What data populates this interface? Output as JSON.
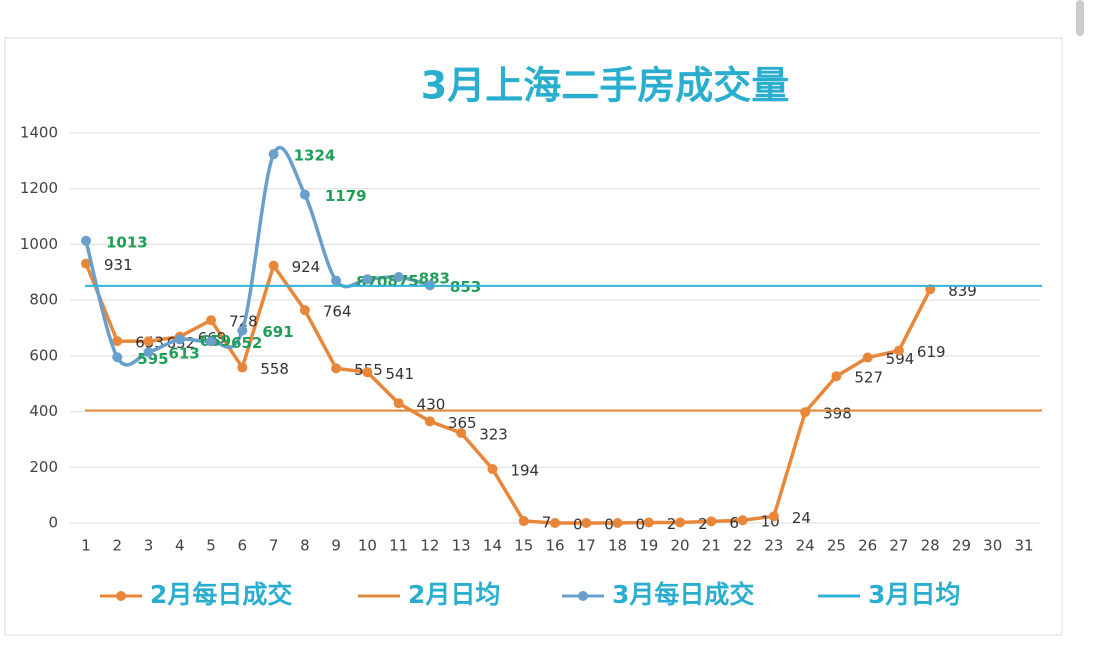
{
  "chart_data": {
    "type": "line",
    "title": "3月上海二手房成交量",
    "categories": [
      "1",
      "2",
      "3",
      "4",
      "5",
      "6",
      "7",
      "8",
      "9",
      "10",
      "11",
      "12",
      "13",
      "14",
      "15",
      "16",
      "17",
      "18",
      "19",
      "20",
      "21",
      "22",
      "23",
      "24",
      "25",
      "26",
      "27",
      "28",
      "29",
      "30",
      "31"
    ],
    "ylim": [
      0,
      1400
    ],
    "yticks": [
      0,
      200,
      400,
      600,
      800,
      1000,
      1200,
      1400
    ],
    "grid": true,
    "series": [
      {
        "name": "2月每日成交",
        "color": "#e8873a",
        "values": [
          931,
          653,
          652,
          669,
          728,
          558,
          924,
          764,
          555,
          541,
          430,
          365,
          323,
          194,
          7,
          0,
          0,
          0,
          2,
          2,
          6,
          10,
          24,
          398,
          527,
          594,
          619,
          839,
          null,
          null,
          null
        ]
      },
      {
        "name": "2月日均",
        "color": "#e08a3c",
        "value": 404
      },
      {
        "name": "3月每日成交",
        "color": "#6a9fcc",
        "smooth": true,
        "values": [
          1013,
          595,
          613,
          659,
          652,
          691,
          1324,
          1179,
          870,
          875,
          883,
          853,
          null,
          null,
          null,
          null,
          null,
          null,
          null,
          null,
          null,
          null,
          null,
          null,
          null,
          null,
          null,
          null,
          null,
          null,
          null
        ]
      },
      {
        "name": "3月日均",
        "color": "#2eb4d6",
        "value": 851
      }
    ],
    "legend": "bottom"
  }
}
